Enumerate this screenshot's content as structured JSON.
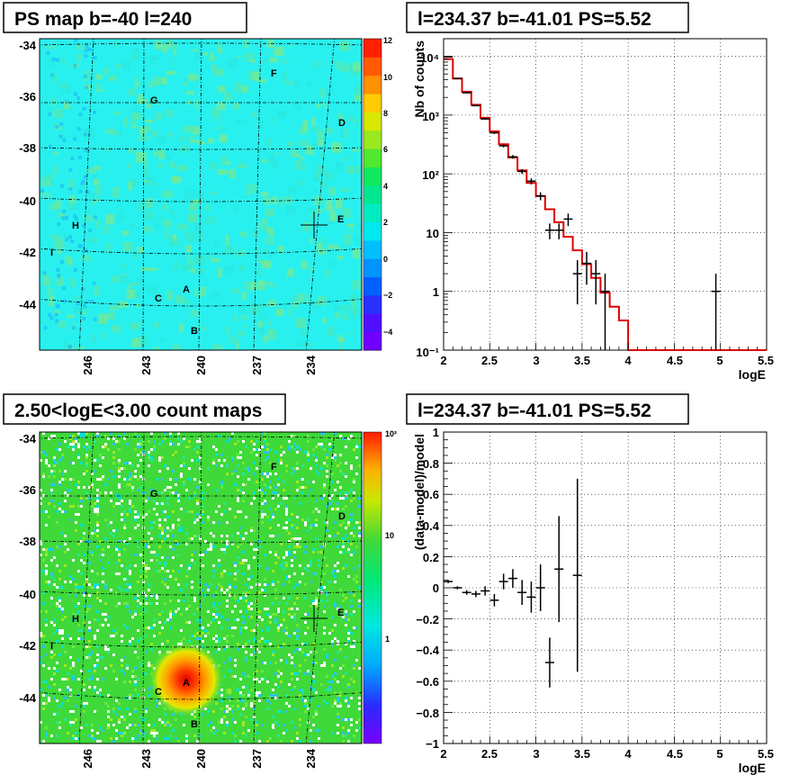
{
  "colors": {
    "map_bg": "#28f0ee",
    "count_bg": "#3fd93a",
    "model_line": "#e00000",
    "data": "#000000"
  },
  "panels": {
    "ps_map": {
      "title": "PS map b=-40 l=240"
    },
    "spectrum": {
      "title": "l=234.37 b=-41.01 PS=5.52"
    },
    "count_map": {
      "title": "2.50<logE<3.00 count maps"
    },
    "residual": {
      "title": "l=234.37 b=-41.01 PS=5.52"
    }
  },
  "chart_data": [
    {
      "type": "heatmap",
      "title": "PS map b=-40 l=240",
      "y_ticks": [
        "-34",
        "-36",
        "-38",
        "-40",
        "-42",
        "-44"
      ],
      "x_ticks": [
        "246",
        "243",
        "240",
        "237",
        "234"
      ],
      "colorbar_ticks": [
        "12",
        "10",
        "8",
        "6",
        "4",
        "2",
        "0",
        "−2",
        "−4"
      ],
      "colorbar_range": [
        -5,
        12
      ],
      "sources": [
        {
          "label": "A"
        },
        {
          "label": "B"
        },
        {
          "label": "C"
        },
        {
          "label": "D"
        },
        {
          "label": "E"
        },
        {
          "label": "F"
        },
        {
          "label": "G"
        },
        {
          "label": "H"
        },
        {
          "label": "I"
        }
      ],
      "marker": {
        "l": 234.37,
        "b": -41.01
      }
    },
    {
      "type": "line",
      "title": "l=234.37 b=-41.01 PS=5.52",
      "xlabel": "logE",
      "ylabel": "Nb of counts",
      "xlim": [
        2,
        5.5
      ],
      "ylim": [
        0.1,
        20000
      ],
      "yscale": "log",
      "x_ticks": [
        "2",
        "2.5",
        "3",
        "3.5",
        "4",
        "4.5",
        "5",
        "5.5"
      ],
      "y_ticks": [
        "10⁻¹",
        "1",
        "10",
        "10²",
        "10³",
        "10⁴"
      ],
      "grid": true,
      "series": [
        {
          "values_model_steps": [
            [
              2.0,
              9000
            ],
            [
              2.1,
              4200
            ],
            [
              2.2,
              2500
            ],
            [
              2.3,
              1500
            ],
            [
              2.4,
              900
            ],
            [
              2.5,
              530
            ],
            [
              2.6,
              320
            ],
            [
              2.7,
              190
            ],
            [
              2.8,
              115
            ],
            [
              2.9,
              70
            ],
            [
              3.0,
              42
            ],
            [
              3.1,
              25
            ],
            [
              3.2,
              15
            ],
            [
              3.3,
              8.5
            ],
            [
              3.4,
              5
            ],
            [
              3.5,
              2.9
            ],
            [
              3.6,
              1.7
            ],
            [
              3.7,
              0.95
            ],
            [
              3.8,
              0.55
            ],
            [
              3.9,
              0.32
            ],
            [
              4.0,
              0.1
            ],
            [
              5.5,
              0.1
            ]
          ]
        }
      ],
      "data_points": [
        {
          "x": 2.05,
          "y": 9800,
          "yerr": 100
        },
        {
          "x": 2.15,
          "y": 4200,
          "yerr": 65
        },
        {
          "x": 2.25,
          "y": 2400,
          "yerr": 50
        },
        {
          "x": 2.35,
          "y": 1450,
          "yerr": 38
        },
        {
          "x": 2.45,
          "y": 860,
          "yerr": 29
        },
        {
          "x": 2.55,
          "y": 500,
          "yerr": 22
        },
        {
          "x": 2.65,
          "y": 300,
          "yerr": 17
        },
        {
          "x": 2.75,
          "y": 195,
          "yerr": 14
        },
        {
          "x": 2.85,
          "y": 110,
          "yerr": 10
        },
        {
          "x": 2.95,
          "y": 75,
          "yerr": 9
        },
        {
          "x": 3.05,
          "y": 42,
          "yerr": 6.5
        },
        {
          "x": 3.15,
          "y": 11,
          "yerr": 3.3
        },
        {
          "x": 3.25,
          "y": 11,
          "yerr": 3.3
        },
        {
          "x": 3.35,
          "y": 17,
          "yerr": 4.1
        },
        {
          "x": 3.45,
          "y": 2,
          "yerr": 1.4
        },
        {
          "x": 3.55,
          "y": 3,
          "yerr": 1.7
        },
        {
          "x": 3.65,
          "y": 2,
          "yerr": 1.4
        },
        {
          "x": 3.75,
          "y": 1,
          "yerr": 1
        },
        {
          "x": 4.95,
          "y": 1,
          "yerr": 1
        }
      ]
    },
    {
      "type": "heatmap",
      "title": "2.50<logE<3.00 count maps",
      "y_ticks": [
        "-34",
        "-36",
        "-38",
        "-40",
        "-42",
        "-44"
      ],
      "x_ticks": [
        "246",
        "243",
        "240",
        "237",
        "234"
      ],
      "colorbar_ticks": [
        "10²",
        "10",
        "1"
      ],
      "colorbar_scale": "log",
      "sources": [
        {
          "label": "A"
        },
        {
          "label": "B"
        },
        {
          "label": "C"
        },
        {
          "label": "D"
        },
        {
          "label": "E"
        },
        {
          "label": "F"
        },
        {
          "label": "G"
        },
        {
          "label": "H"
        },
        {
          "label": "I"
        }
      ]
    },
    {
      "type": "scatter",
      "title": "l=234.37 b=-41.01 PS=5.52",
      "xlabel": "logE",
      "ylabel": "(data-model)/model",
      "xlim": [
        2,
        5.5
      ],
      "ylim": [
        -1,
        1
      ],
      "x_ticks": [
        "2",
        "2.5",
        "3",
        "3.5",
        "4",
        "4.5",
        "5",
        "5.5"
      ],
      "y_ticks": [
        "1",
        "0.8",
        "0.6",
        "0.4",
        "0.2",
        "0",
        "−0.2",
        "−0.4",
        "−0.6",
        "−0.8",
        "−1"
      ],
      "grid": true,
      "data_points": [
        {
          "x": 2.05,
          "y": 0.04,
          "yerr": 0.01
        },
        {
          "x": 2.15,
          "y": 0.0,
          "yerr": 0.01
        },
        {
          "x": 2.25,
          "y": -0.03,
          "yerr": 0.015
        },
        {
          "x": 2.35,
          "y": -0.04,
          "yerr": 0.02
        },
        {
          "x": 2.45,
          "y": -0.02,
          "yerr": 0.03
        },
        {
          "x": 2.55,
          "y": -0.08,
          "yerr": 0.04
        },
        {
          "x": 2.65,
          "y": 0.04,
          "yerr": 0.05
        },
        {
          "x": 2.75,
          "y": 0.06,
          "yerr": 0.06
        },
        {
          "x": 2.85,
          "y": -0.03,
          "yerr": 0.08
        },
        {
          "x": 2.95,
          "y": -0.06,
          "yerr": 0.1
        },
        {
          "x": 3.05,
          "y": 0.0,
          "yerr": 0.15
        },
        {
          "x": 3.15,
          "y": -0.48,
          "yerr": 0.16
        },
        {
          "x": 3.25,
          "y": 0.12,
          "yerr": 0.34
        },
        {
          "x": 3.45,
          "y": 0.08,
          "yerr": 0.62
        }
      ]
    }
  ]
}
